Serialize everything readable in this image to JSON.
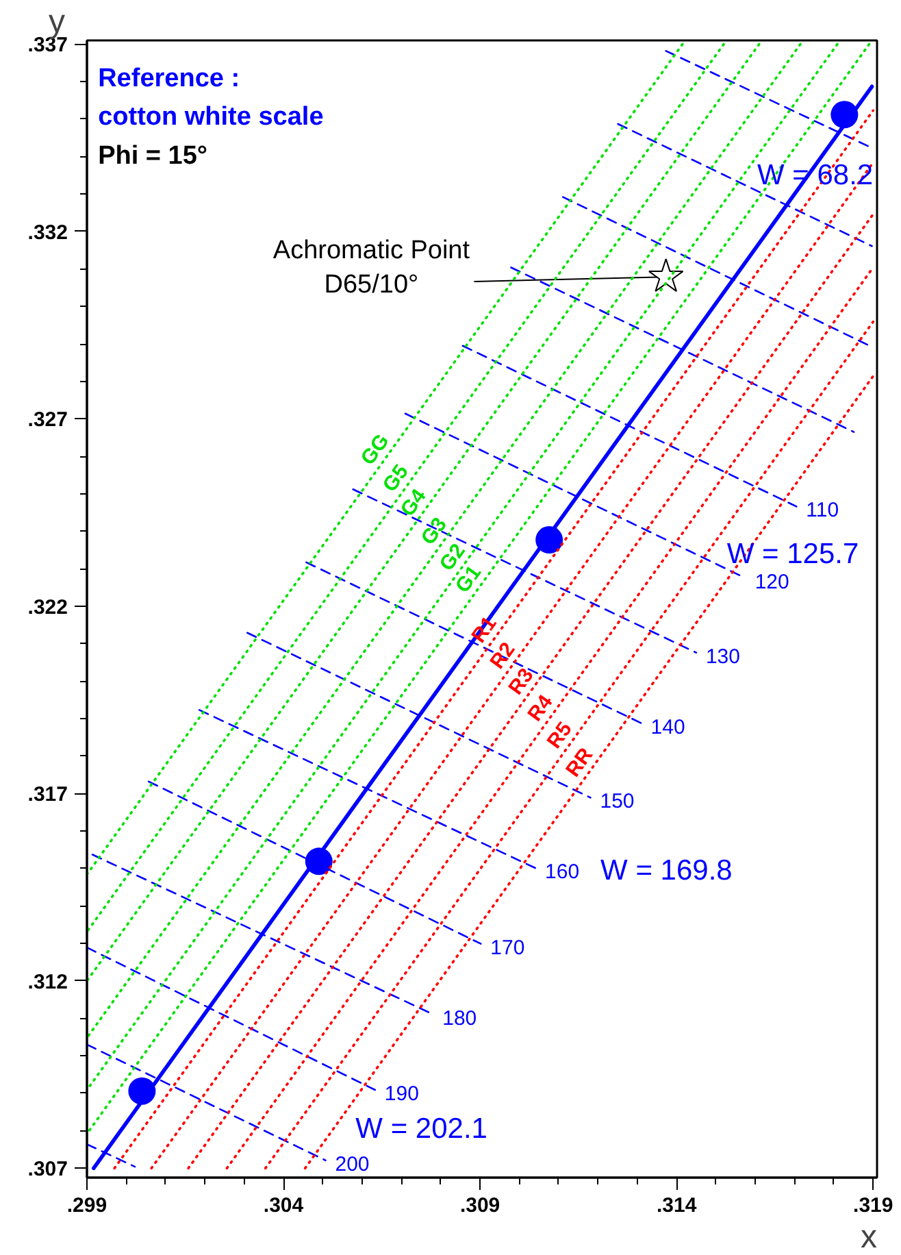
{
  "chart_data": {
    "type": "line",
    "title": "Reference :",
    "subtitle": "cotton white scale",
    "xlabel": "x",
    "ylabel": "y",
    "xlim": [
      0.299,
      0.3191
    ],
    "ylim": [
      0.30675,
      0.3371
    ],
    "xticks": [
      {
        "value": 0.299,
        "label": ".299"
      },
      {
        "value": 0.3,
        "label": null
      },
      {
        "value": 0.301,
        "label": null
      },
      {
        "value": 0.302,
        "label": null
      },
      {
        "value": 0.303,
        "label": null
      },
      {
        "value": 0.304,
        "label": ".304"
      },
      {
        "value": 0.305,
        "label": null
      },
      {
        "value": 0.306,
        "label": null
      },
      {
        "value": 0.307,
        "label": null
      },
      {
        "value": 0.308,
        "label": null
      },
      {
        "value": 0.309,
        "label": ".309"
      },
      {
        "value": 0.31,
        "label": null
      },
      {
        "value": 0.311,
        "label": null
      },
      {
        "value": 0.312,
        "label": null
      },
      {
        "value": 0.313,
        "label": null
      },
      {
        "value": 0.314,
        "label": ".314"
      },
      {
        "value": 0.315,
        "label": null
      },
      {
        "value": 0.316,
        "label": null
      },
      {
        "value": 0.317,
        "label": null
      },
      {
        "value": 0.318,
        "label": null
      },
      {
        "value": 0.319,
        "label": ".319"
      }
    ],
    "yticks": [
      {
        "value": 0.307,
        "label": ".307"
      },
      {
        "value": 0.308,
        "label": null
      },
      {
        "value": 0.309,
        "label": null
      },
      {
        "value": 0.31,
        "label": null
      },
      {
        "value": 0.311,
        "label": null
      },
      {
        "value": 0.312,
        "label": ".312"
      },
      {
        "value": 0.313,
        "label": null
      },
      {
        "value": 0.314,
        "label": null
      },
      {
        "value": 0.315,
        "label": null
      },
      {
        "value": 0.316,
        "label": null
      },
      {
        "value": 0.317,
        "label": ".317"
      },
      {
        "value": 0.318,
        "label": null
      },
      {
        "value": 0.319,
        "label": null
      },
      {
        "value": 0.32,
        "label": null
      },
      {
        "value": 0.321,
        "label": null
      },
      {
        "value": 0.322,
        "label": ".322"
      },
      {
        "value": 0.323,
        "label": null
      },
      {
        "value": 0.324,
        "label": null
      },
      {
        "value": 0.325,
        "label": null
      },
      {
        "value": 0.326,
        "label": null
      },
      {
        "value": 0.327,
        "label": ".327"
      },
      {
        "value": 0.328,
        "label": null
      },
      {
        "value": 0.329,
        "label": null
      },
      {
        "value": 0.33,
        "label": null
      },
      {
        "value": 0.331,
        "label": null
      },
      {
        "value": 0.332,
        "label": ".332"
      },
      {
        "value": 0.333,
        "label": null
      },
      {
        "value": 0.334,
        "label": null
      },
      {
        "value": 0.335,
        "label": null
      },
      {
        "value": 0.336,
        "label": null
      },
      {
        "value": 0.337,
        "label": ".337"
      }
    ],
    "grid": false,
    "series": [
      {
        "color": "#0000ff",
        "line_style": "solid",
        "x": [
          0.29917,
          0.31897
        ],
        "values": [
          0.307,
          0.33587
        ]
      },
      {
        "type": "scatter",
        "marker": "circle",
        "color": "#0000ff",
        "x": [
          0.3004,
          0.3049,
          0.31076,
          0.31827
        ],
        "values": [
          0.30906,
          0.31519,
          0.32377,
          0.33512
        ]
      },
      {
        "type": "scatter",
        "marker": "star",
        "color": "#000000",
        "x": [
          0.31373
        ],
        "values": [
          0.33079
        ]
      },
      {
        "color": "#0000ff",
        "line_style": "dashed",
        "x": [
          0.31373,
          0.31897
        ],
        "values": [
          0.33682,
          0.33423
        ]
      },
      {
        "color": "#0000ff",
        "line_style": "dashed",
        "x": [
          0.31251,
          0.31897
        ],
        "values": [
          0.33487,
          0.33161
        ]
      },
      {
        "color": "#0000ff",
        "line_style": "dashed",
        "x": [
          0.31111,
          0.31897
        ],
        "values": [
          0.33292,
          0.32892
        ]
      },
      {
        "color": "#0000ff",
        "line_style": "dashed",
        "x": [
          0.30979,
          0.31851
        ],
        "values": [
          0.33104,
          0.32665
        ]
      },
      {
        "name": "110",
        "color": "#0000ff",
        "line_style": "dashed",
        "x": [
          0.30856,
          0.31705
        ],
        "values": [
          0.32895,
          0.32466
        ]
      },
      {
        "name": "120",
        "color": "#0000ff",
        "line_style": "dashed",
        "x": [
          0.3071,
          0.31575
        ],
        "values": [
          0.32714,
          0.32275
        ]
      },
      {
        "name": "130",
        "color": "#0000ff",
        "line_style": "dashed",
        "x": [
          0.30577,
          0.3145
        ],
        "values": [
          0.32512,
          0.32076
        ]
      },
      {
        "name": "140",
        "color": "#0000ff",
        "line_style": "dashed",
        "x": [
          0.30458,
          0.3131
        ],
        "values": [
          0.32317,
          0.31888
        ]
      },
      {
        "name": "150",
        "color": "#0000ff",
        "line_style": "dashed",
        "x": [
          0.30308,
          0.31181
        ],
        "values": [
          0.32129,
          0.31689
        ]
      },
      {
        "name": "160",
        "color": "#0000ff",
        "line_style": "dashed",
        "x": [
          0.30186,
          0.31041
        ],
        "values": [
          0.31923,
          0.31501
        ]
      },
      {
        "name": "170",
        "color": "#0000ff",
        "line_style": "dashed",
        "x": [
          0.30057,
          0.30902
        ],
        "values": [
          0.31732,
          0.31299
        ]
      },
      {
        "name": "180",
        "color": "#0000ff",
        "line_style": "dashed",
        "x": [
          0.29914,
          0.3078
        ],
        "values": [
          0.31537,
          0.31111
        ]
      },
      {
        "name": "190",
        "color": "#0000ff",
        "line_style": "dashed",
        "x": [
          0.299,
          0.30633
        ],
        "values": [
          0.31289,
          0.30909
        ]
      },
      {
        "name": "200",
        "color": "#0000ff",
        "line_style": "dashed",
        "x": [
          0.299,
          0.30507
        ],
        "values": [
          0.3103,
          0.30721
        ]
      },
      {
        "color": "#0000ff",
        "line_style": "dashed",
        "x": [
          0.299,
          0.30022
        ],
        "values": [
          0.30764,
          0.30704
        ]
      },
      {
        "name": "G1",
        "color": "#00e000",
        "line_style": "dotted",
        "x": [
          0.3189,
          0.299
        ],
        "values": [
          0.337,
          0.30792
        ]
      },
      {
        "name": "G2",
        "color": "#00e000",
        "line_style": "dotted",
        "x": [
          0.31809,
          0.299
        ],
        "values": [
          0.337,
          0.30909
        ]
      },
      {
        "name": "G3",
        "color": "#00e000",
        "line_style": "dotted",
        "x": [
          0.31715,
          0.299
        ],
        "values": [
          0.337,
          0.31048
        ]
      },
      {
        "name": "G4",
        "color": "#00e000",
        "line_style": "dotted",
        "x": [
          0.3161,
          0.299
        ],
        "values": [
          0.337,
          0.312
        ]
      },
      {
        "name": "G5",
        "color": "#00e000",
        "line_style": "dotted",
        "x": [
          0.3152,
          0.299
        ],
        "values": [
          0.337,
          0.31331
        ]
      },
      {
        "name": "GG",
        "color": "#00e000",
        "line_style": "dotted",
        "x": [
          0.31415,
          0.299
        ],
        "values": [
          0.337,
          0.31484
        ]
      },
      {
        "name": "R1",
        "color": "#ff0000",
        "line_style": "dotted",
        "x": [
          0.2997,
          0.319
        ],
        "values": [
          0.307,
          0.33523
        ]
      },
      {
        "name": "R2",
        "color": "#ff0000",
        "line_style": "dotted",
        "x": [
          0.30064,
          0.319
        ],
        "values": [
          0.307,
          0.33384
        ]
      },
      {
        "name": "R3",
        "color": "#ff0000",
        "line_style": "dotted",
        "x": [
          0.30158,
          0.319
        ],
        "values": [
          0.307,
          0.33246
        ]
      },
      {
        "name": "R4",
        "color": "#ff0000",
        "line_style": "dotted",
        "x": [
          0.30256,
          0.319
        ],
        "values": [
          0.307,
          0.33104
        ]
      },
      {
        "name": "R5",
        "color": "#ff0000",
        "line_style": "dotted",
        "x": [
          0.30354,
          0.319
        ],
        "values": [
          0.307,
          0.32959
        ]
      },
      {
        "name": "RR",
        "color": "#ff0000",
        "line_style": "dotted",
        "x": [
          0.30455,
          0.319
        ],
        "values": [
          0.307,
          0.32814
        ]
      }
    ],
    "annotations": [
      "Phi = 15°",
      {
        "text": "Achromatic Point\nD65/10°",
        "x": 0.31373,
        "y": 0.33079
      },
      "W = 68.2",
      "W = 125.7",
      "W = 169.8",
      "W = 202.1"
    ]
  }
}
